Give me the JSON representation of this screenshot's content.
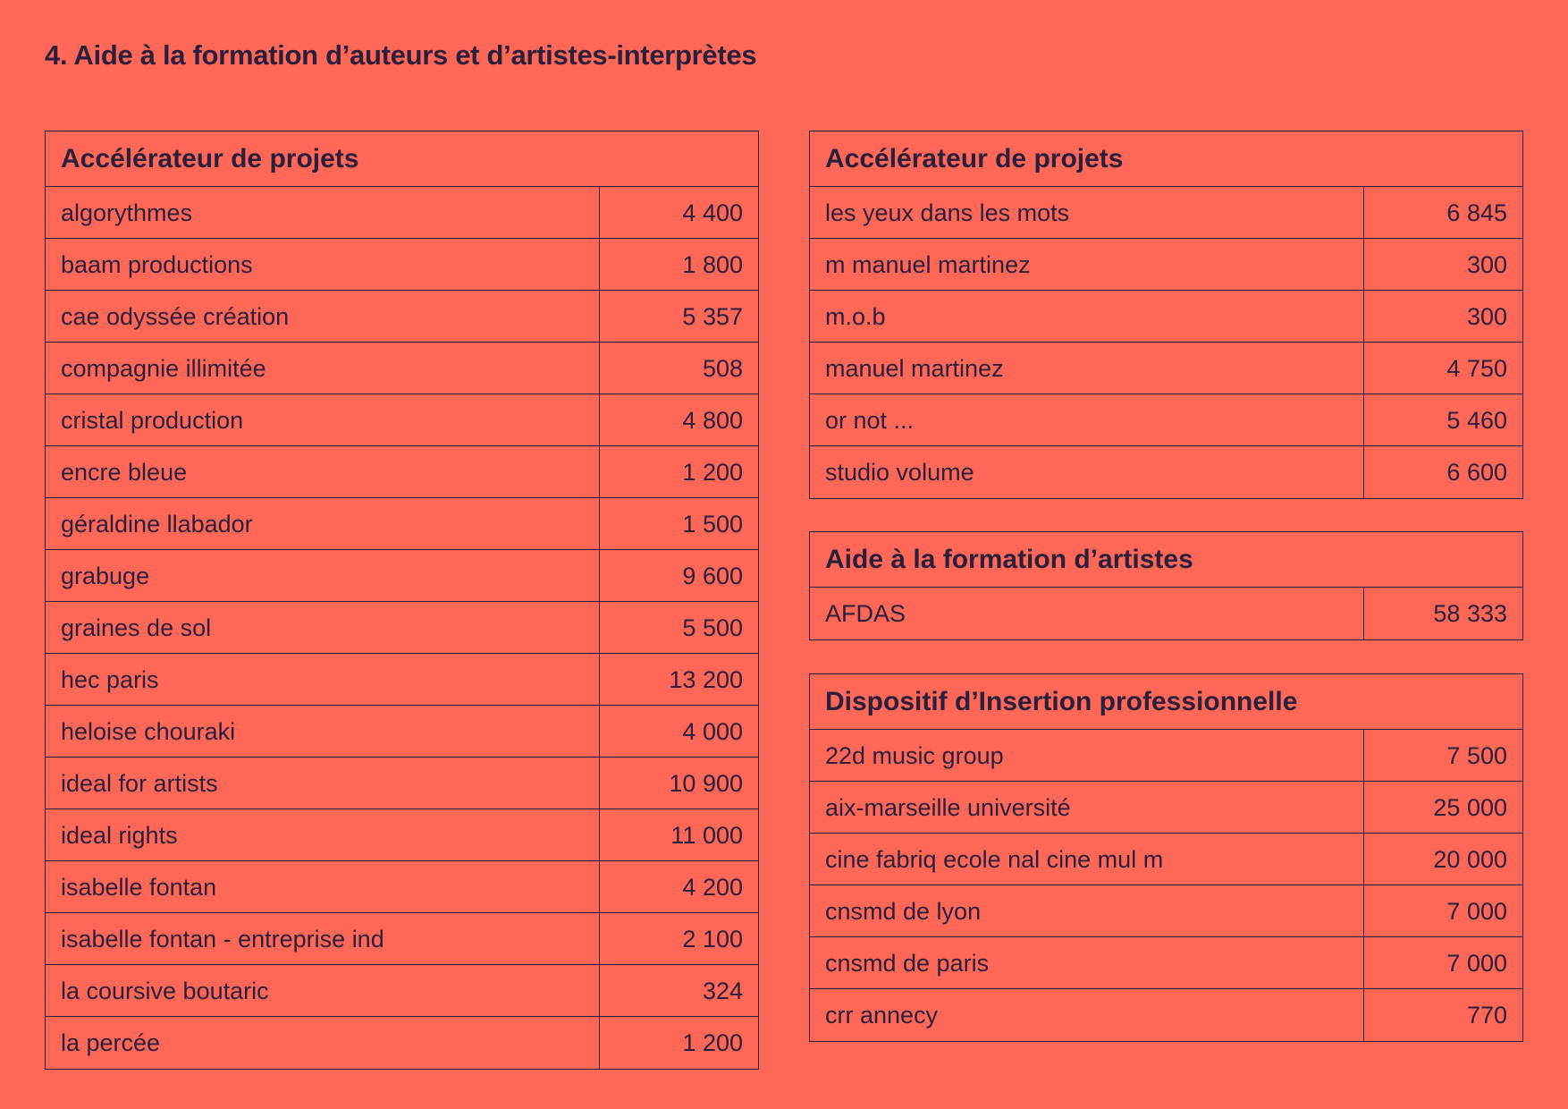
{
  "page": {
    "title": "4. Aide à la formation d’auteurs et d’artistes-interprètes"
  },
  "tables": [
    {
      "heading": "Accélérateur de projets",
      "rows": [
        {
          "name": "algorythmes",
          "amount": "4 400"
        },
        {
          "name": "baam productions",
          "amount": "1 800"
        },
        {
          "name": "cae odyssée création",
          "amount": "5 357"
        },
        {
          "name": "compagnie illimitée",
          "amount": "508"
        },
        {
          "name": "cristal production",
          "amount": "4 800"
        },
        {
          "name": "encre bleue",
          "amount": "1 200"
        },
        {
          "name": "géraldine llabador",
          "amount": "1 500"
        },
        {
          "name": "grabuge",
          "amount": "9 600"
        },
        {
          "name": "graines de sol",
          "amount": "5 500"
        },
        {
          "name": "hec paris",
          "amount": "13 200"
        },
        {
          "name": "heloise chouraki",
          "amount": "4 000"
        },
        {
          "name": "ideal for artists",
          "amount": "10 900"
        },
        {
          "name": "ideal rights",
          "amount": "11 000"
        },
        {
          "name": "isabelle fontan",
          "amount": "4 200"
        },
        {
          "name": "isabelle fontan - entreprise ind",
          "amount": "2 100"
        },
        {
          "name": "la coursive boutaric",
          "amount": "324"
        },
        {
          "name": "la percée",
          "amount": "1 200"
        }
      ]
    },
    {
      "heading": "Accélérateur de projets",
      "rows": [
        {
          "name": "les yeux dans les mots",
          "amount": "6 845"
        },
        {
          "name": "m manuel martinez",
          "amount": "300"
        },
        {
          "name": "m.o.b",
          "amount": "300"
        },
        {
          "name": "manuel martinez",
          "amount": "4 750"
        },
        {
          "name": "or not ...",
          "amount": "5 460"
        },
        {
          "name": "studio volume",
          "amount": "6 600"
        }
      ]
    },
    {
      "heading": "Aide à la formation d’artistes",
      "rows": [
        {
          "name": "AFDAS",
          "amount": "58 333"
        }
      ]
    },
    {
      "heading": "Dispositif d’Insertion professionnelle",
      "rows": [
        {
          "name": "22d music group",
          "amount": "7 500"
        },
        {
          "name": "aix-marseille université",
          "amount": "25 000"
        },
        {
          "name": "cine fabriq ecole nal cine mul m",
          "amount": "20 000"
        },
        {
          "name": "cnsmd de lyon",
          "amount": "7 000"
        },
        {
          "name": "cnsmd de paris",
          "amount": "7 000"
        },
        {
          "name": "crr annecy",
          "amount": "770"
        }
      ]
    }
  ]
}
